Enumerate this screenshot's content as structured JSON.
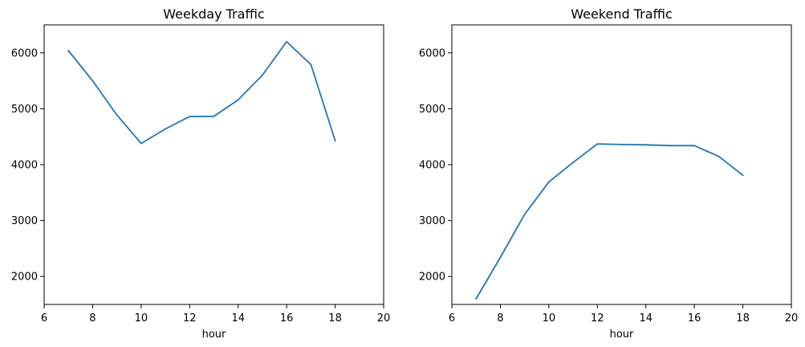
{
  "chart_data": [
    {
      "type": "line",
      "title": "Weekday Traffic",
      "xlabel": "hour",
      "ylabel": "",
      "xlim": [
        6,
        20
      ],
      "ylim": [
        1500,
        6500
      ],
      "xticks": [
        6,
        8,
        10,
        12,
        14,
        16,
        18,
        20
      ],
      "yticks": [
        2000,
        3000,
        4000,
        5000,
        6000
      ],
      "series": [
        {
          "x": [
            7,
            8,
            9,
            10,
            11,
            12,
            13,
            14,
            15,
            16,
            17,
            18
          ],
          "values": [
            6040,
            5500,
            4890,
            4380,
            4640,
            4860,
            4865,
            5160,
            5600,
            6200,
            5790,
            4430
          ]
        }
      ],
      "grid": false,
      "color": "#1f77b4"
    },
    {
      "type": "line",
      "title": "Weekend Traffic",
      "xlabel": "hour",
      "ylabel": "",
      "xlim": [
        6,
        20
      ],
      "ylim": [
        1500,
        6500
      ],
      "xticks": [
        6,
        8,
        10,
        12,
        14,
        16,
        18,
        20
      ],
      "yticks": [
        2000,
        3000,
        4000,
        5000,
        6000
      ],
      "series": [
        {
          "x": [
            7,
            8,
            9,
            10,
            11,
            12,
            13,
            14,
            15,
            16,
            17,
            18
          ],
          "values": [
            1600,
            2340,
            3110,
            3690,
            4040,
            4370,
            4360,
            4355,
            4340,
            4340,
            4150,
            3810
          ]
        }
      ],
      "grid": false,
      "color": "#1f77b4"
    }
  ]
}
